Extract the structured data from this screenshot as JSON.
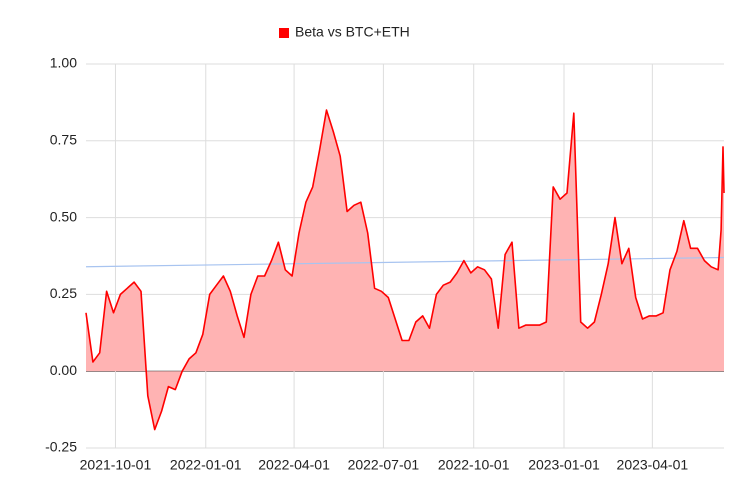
{
  "chart_data": {
    "type": "area",
    "x": [
      "2021-09-01",
      "2021-09-08",
      "2021-09-15",
      "2021-09-22",
      "2021-09-29",
      "2021-10-06",
      "2021-10-13",
      "2021-10-20",
      "2021-10-27",
      "2021-11-03",
      "2021-11-10",
      "2021-11-17",
      "2021-11-24",
      "2021-12-01",
      "2021-12-08",
      "2021-12-15",
      "2021-12-22",
      "2021-12-29",
      "2022-01-05",
      "2022-01-12",
      "2022-01-19",
      "2022-01-26",
      "2022-02-02",
      "2022-02-09",
      "2022-02-16",
      "2022-02-23",
      "2022-03-02",
      "2022-03-09",
      "2022-03-16",
      "2022-03-23",
      "2022-03-30",
      "2022-04-06",
      "2022-04-13",
      "2022-04-20",
      "2022-04-27",
      "2022-05-04",
      "2022-05-11",
      "2022-05-18",
      "2022-05-25",
      "2022-06-01",
      "2022-06-08",
      "2022-06-15",
      "2022-06-22",
      "2022-06-29",
      "2022-07-06",
      "2022-07-13",
      "2022-07-20",
      "2022-07-27",
      "2022-08-03",
      "2022-08-10",
      "2022-08-17",
      "2022-08-24",
      "2022-08-31",
      "2022-09-07",
      "2022-09-14",
      "2022-09-21",
      "2022-09-28",
      "2022-10-05",
      "2022-10-12",
      "2022-10-19",
      "2022-10-26",
      "2022-11-02",
      "2022-11-09",
      "2022-11-16",
      "2022-11-23",
      "2022-11-30",
      "2022-12-07",
      "2022-12-14",
      "2022-12-21",
      "2022-12-28",
      "2023-01-04",
      "2023-01-11",
      "2023-01-18",
      "2023-01-25",
      "2023-02-01",
      "2023-02-08",
      "2023-02-15",
      "2023-02-22",
      "2023-03-01",
      "2023-03-08",
      "2023-03-15",
      "2023-03-22",
      "2023-03-29",
      "2023-04-05",
      "2023-04-12",
      "2023-04-19",
      "2023-04-26",
      "2023-05-03",
      "2023-05-10",
      "2023-05-17",
      "2023-05-24",
      "2023-05-31",
      "2023-06-07",
      "2023-06-10",
      "2023-06-12",
      "2023-06-13"
    ],
    "series": [
      {
        "name": "Beta vs BTC+ETH",
        "color": "#ff0000",
        "fill": "#ffb3b3",
        "values": [
          0.19,
          0.03,
          0.06,
          0.26,
          0.19,
          0.25,
          0.27,
          0.29,
          0.26,
          -0.08,
          -0.19,
          -0.13,
          -0.05,
          -0.06,
          0.0,
          0.04,
          0.06,
          0.12,
          0.25,
          0.28,
          0.31,
          0.26,
          0.18,
          0.11,
          0.25,
          0.31,
          0.31,
          0.36,
          0.42,
          0.33,
          0.31,
          0.45,
          0.55,
          0.6,
          0.72,
          0.85,
          0.78,
          0.7,
          0.52,
          0.54,
          0.55,
          0.45,
          0.27,
          0.26,
          0.24,
          0.17,
          0.1,
          0.1,
          0.16,
          0.18,
          0.14,
          0.25,
          0.28,
          0.29,
          0.32,
          0.36,
          0.32,
          0.34,
          0.33,
          0.3,
          0.14,
          0.38,
          0.42,
          0.14,
          0.15,
          0.15,
          0.15,
          0.16,
          0.6,
          0.56,
          0.58,
          0.84,
          0.16,
          0.14,
          0.16,
          0.25,
          0.35,
          0.5,
          0.35,
          0.4,
          0.24,
          0.17,
          0.18,
          0.18,
          0.19,
          0.33,
          0.39,
          0.49,
          0.4,
          0.4,
          0.36,
          0.34,
          0.33,
          0.46,
          0.73,
          0.58
        ]
      }
    ],
    "trendline": {
      "color": "#a8c4f0",
      "values": [
        0.34,
        0.37
      ]
    },
    "xlim": [
      "2021-09-01",
      "2023-06-13"
    ],
    "xticks": [
      "2021-10-01",
      "2022-01-01",
      "2022-04-01",
      "2022-07-01",
      "2022-10-01",
      "2023-01-01",
      "2023-04-01"
    ],
    "ylim": [
      -0.25,
      1
    ],
    "yticks": [
      {
        "value": -0.25,
        "label": "-0.25"
      },
      {
        "value": 0,
        "label": "0.00"
      },
      {
        "value": 0.25,
        "label": "0.25"
      },
      {
        "value": 0.5,
        "label": "0.50"
      },
      {
        "value": 0.75,
        "label": "0.75"
      },
      {
        "value": 1,
        "label": "1.00"
      }
    ],
    "grid": true,
    "legend": "top"
  }
}
